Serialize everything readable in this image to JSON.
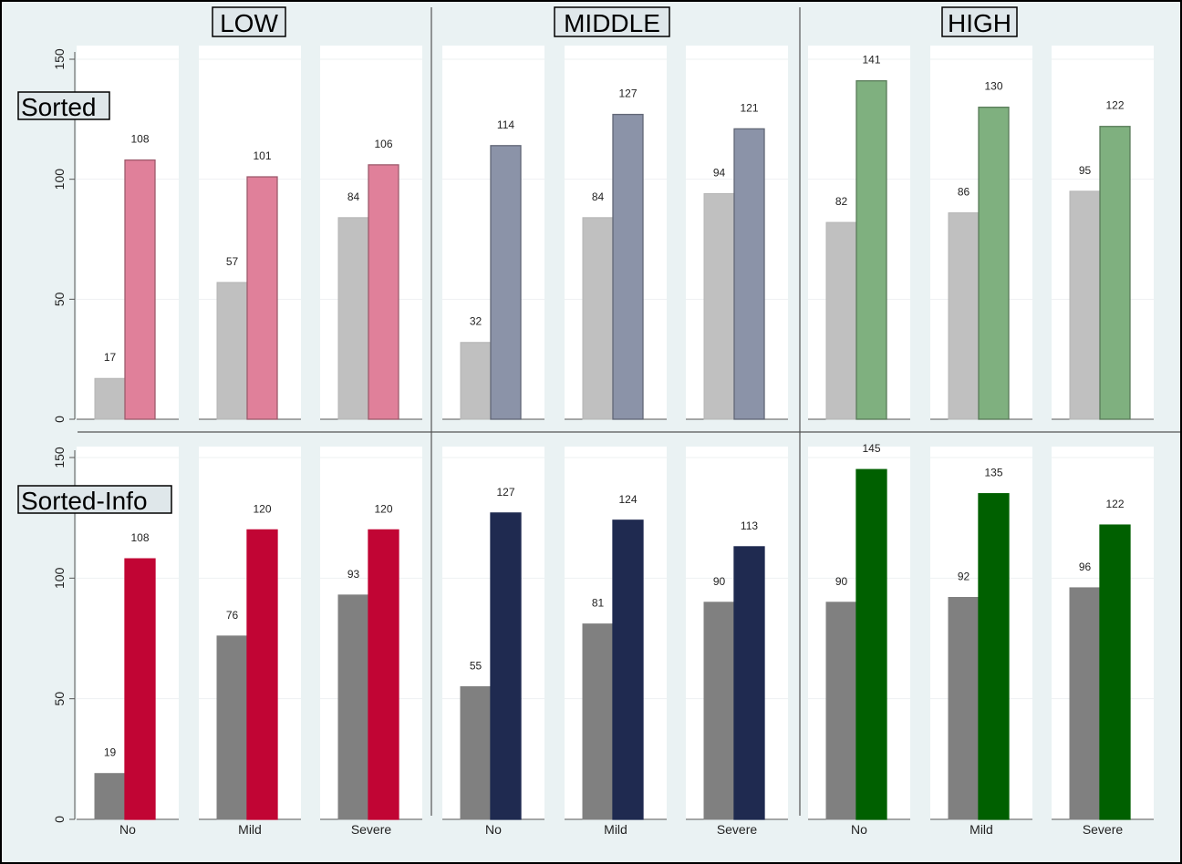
{
  "chart_data": {
    "type": "bar",
    "column_titles": [
      "LOW",
      "MIDDLE",
      "HIGH"
    ],
    "row_titles": [
      "Sorted",
      "Sorted-Info"
    ],
    "categories": [
      "No",
      "Mild",
      "Severe"
    ],
    "y_ticks": [
      "0",
      "50",
      "100",
      "150"
    ],
    "ylim": [
      0,
      150
    ],
    "grid": true,
    "series_colors": {
      "Sorted": {
        "gray": "#c0c0c0",
        "LOW": "#e0809a",
        "MIDDLE": "#8b93a8",
        "HIGH": "#7fb07f"
      },
      "Sorted-Info": {
        "gray": "#808080",
        "LOW": "#c10534",
        "MIDDLE": "#1f2a50",
        "HIGH": "#006000"
      }
    },
    "panels": [
      {
        "row": "Sorted",
        "col": "LOW",
        "gray": [
          17,
          57,
          84
        ],
        "colored": [
          108,
          101,
          106
        ]
      },
      {
        "row": "Sorted",
        "col": "MIDDLE",
        "gray": [
          32,
          84,
          94
        ],
        "colored": [
          114,
          127,
          121
        ]
      },
      {
        "row": "Sorted",
        "col": "HIGH",
        "gray": [
          82,
          86,
          95
        ],
        "colored": [
          141,
          130,
          122
        ]
      },
      {
        "row": "Sorted-Info",
        "col": "LOW",
        "gray": [
          19,
          76,
          93
        ],
        "colored": [
          108,
          120,
          120
        ]
      },
      {
        "row": "Sorted-Info",
        "col": "MIDDLE",
        "gray": [
          55,
          81,
          90
        ],
        "colored": [
          127,
          124,
          113
        ]
      },
      {
        "row": "Sorted-Info",
        "col": "HIGH",
        "gray": [
          90,
          92,
          96
        ],
        "colored": [
          145,
          135,
          122
        ]
      }
    ]
  }
}
